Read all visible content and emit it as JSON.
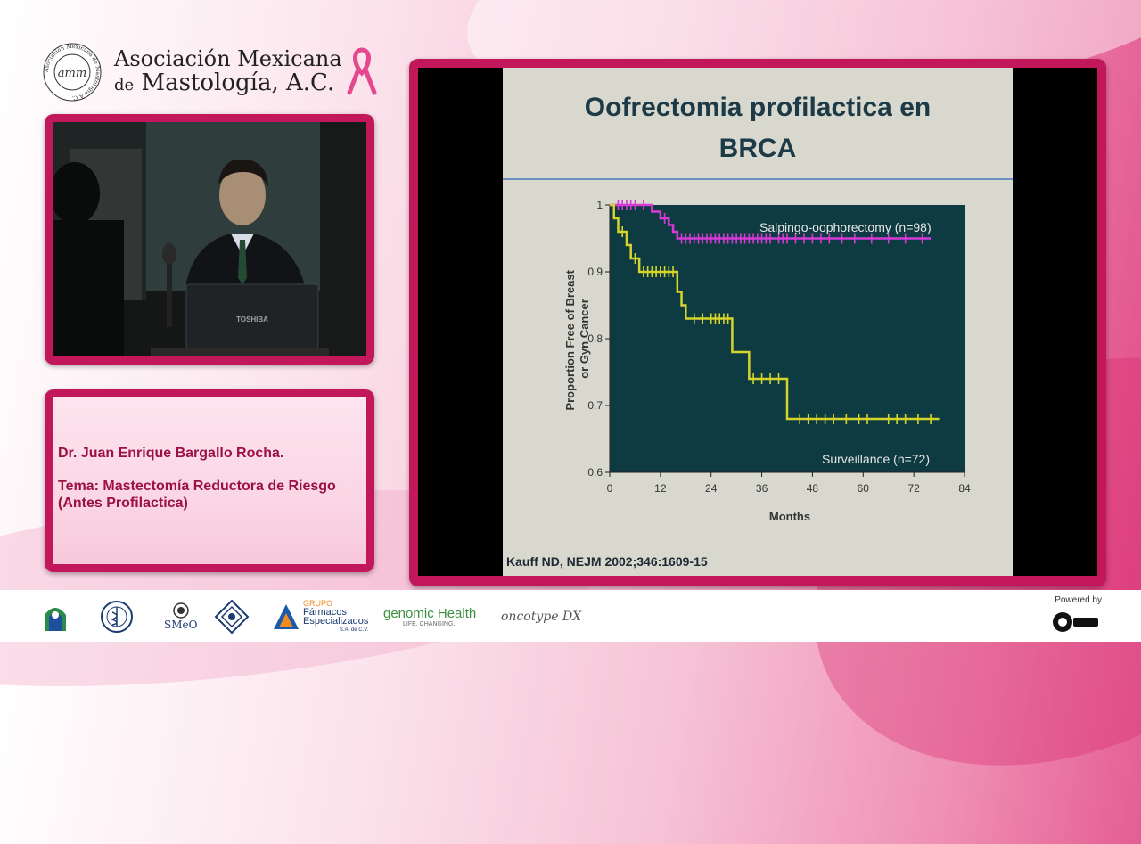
{
  "header": {
    "org_name_line1": "Asociación Mexicana",
    "org_name_prefix": "de",
    "org_name_line2": "Mastología, A.C.",
    "seal_ring_text": "Asociación Mexicana de Mastología A.C.",
    "seal_monogram": "amm"
  },
  "video": {
    "laptop_brand": "TOSHIBA"
  },
  "info": {
    "speaker": "Dr. Juan Enrique Bargallo Rocha.",
    "tema": "Tema: Mastectomía Reductora de Riesgo (Antes Profilactica)"
  },
  "slide": {
    "title_line1": "Oofrectomia profilactica en",
    "title_line2": "BRCA",
    "citation": "Kauff ND, NEJM 2002;346:1609-15"
  },
  "chart_data": {
    "type": "line",
    "xlabel": "Months",
    "ylabel": "Proportion Free of Breast or Gyn Cancer",
    "xlim": [
      0,
      84
    ],
    "ylim": [
      0.6,
      1
    ],
    "x_ticks": [
      0,
      12,
      24,
      36,
      48,
      60,
      72,
      84
    ],
    "y_ticks": [
      0.6,
      0.7,
      0.8,
      0.9,
      1
    ],
    "y_tick_labels": [
      "0.6",
      "0.7",
      "0.8",
      "0.9",
      "1"
    ],
    "series": [
      {
        "name": "Salpingo-oophorectomy (n=98)",
        "color": "#d63ad6",
        "steps": [
          [
            0,
            1
          ],
          [
            10,
            0.99
          ],
          [
            12,
            0.98
          ],
          [
            14,
            0.97
          ],
          [
            15,
            0.96
          ],
          [
            16,
            0.95
          ],
          [
            76,
            0.95
          ]
        ],
        "censor_x": [
          2,
          3,
          4,
          5,
          6,
          8,
          13,
          17,
          18,
          19,
          20,
          21,
          22,
          23,
          24,
          25,
          26,
          27,
          28,
          29,
          30,
          31,
          32,
          33,
          34,
          35,
          36,
          37,
          38,
          40,
          41,
          42,
          44,
          46,
          48,
          50,
          52,
          55,
          58,
          62,
          66,
          70,
          74
        ]
      },
      {
        "name": "Surveillance (n=72)",
        "color": "#d4d42a",
        "steps": [
          [
            0,
            1
          ],
          [
            1,
            0.98
          ],
          [
            2,
            0.96
          ],
          [
            4,
            0.94
          ],
          [
            5,
            0.92
          ],
          [
            7,
            0.9
          ],
          [
            16,
            0.87
          ],
          [
            17,
            0.85
          ],
          [
            18,
            0.83
          ],
          [
            29,
            0.78
          ],
          [
            33,
            0.74
          ],
          [
            42,
            0.68
          ],
          [
            78,
            0.68
          ]
        ],
        "censor_x": [
          3,
          6,
          8,
          9,
          10,
          11,
          12,
          13,
          14,
          15,
          20,
          22,
          24,
          25,
          26,
          27,
          28,
          34,
          36,
          38,
          40,
          45,
          47,
          49,
          51,
          53,
          56,
          59,
          61,
          66,
          68,
          70,
          73,
          76
        ]
      }
    ]
  },
  "footer": {
    "sponsors": [
      "SMeO",
      "GRUPO",
      "Fármacos",
      "Especializados",
      "S.A. de C.V.",
      "genomic Health",
      "LIFE. CHANGING.",
      "oncotype DX"
    ],
    "powered_by": "Powered by"
  }
}
